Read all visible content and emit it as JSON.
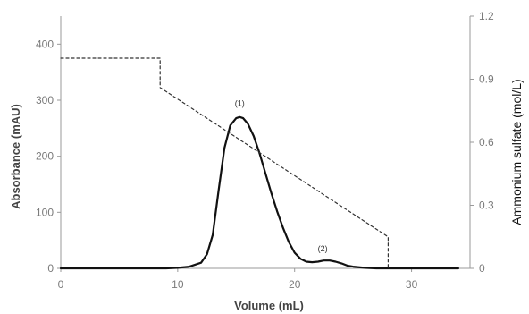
{
  "chart_data": {
    "type": "line",
    "xlabel": "Volume (mL)",
    "ylabel": "Absorbance (mAU)",
    "y2label": "Ammonium sulfate (mol/L)",
    "xlim": [
      0,
      35
    ],
    "ylim": [
      0,
      450
    ],
    "y2lim": [
      0,
      1.2
    ],
    "x_ticks": [
      "0",
      "10",
      "20",
      "30"
    ],
    "y_ticks": [
      "0",
      "100",
      "200",
      "300",
      "400"
    ],
    "y2_ticks": [
      "0",
      "0.3",
      "0.6",
      "0.9",
      "1.2"
    ],
    "grid": false,
    "legend": "none",
    "series": [
      {
        "axis": "left",
        "style": "solid",
        "color": "#111111",
        "x": [
          0,
          9,
          10,
          11,
          12,
          12.5,
          13,
          13.5,
          14,
          14.5,
          15,
          15.3,
          15.6,
          16,
          16.5,
          17,
          17.5,
          18,
          18.5,
          19,
          19.5,
          20,
          20.5,
          21,
          21.5,
          22,
          22.5,
          23,
          23.5,
          24,
          24.5,
          25,
          26,
          27,
          28,
          30,
          34
        ],
        "values": [
          0,
          0,
          1,
          3,
          10,
          25,
          60,
          140,
          215,
          255,
          268,
          270,
          268,
          258,
          236,
          205,
          170,
          135,
          102,
          73,
          47,
          28,
          17,
          12,
          11,
          12,
          14,
          14,
          12,
          9,
          5,
          3,
          1,
          0,
          0,
          0,
          0
        ]
      },
      {
        "axis": "right",
        "style": "dashed",
        "color": "#333333",
        "x": [
          0,
          8.5,
          8.5,
          28,
          28
        ],
        "values": [
          1.0,
          1.0,
          0.86,
          0.15,
          0
        ]
      }
    ],
    "annotations": [
      {
        "text": "(1)",
        "x": 15.3,
        "y": 290
      },
      {
        "text": "(2)",
        "x": 22.4,
        "y": 30
      }
    ]
  }
}
